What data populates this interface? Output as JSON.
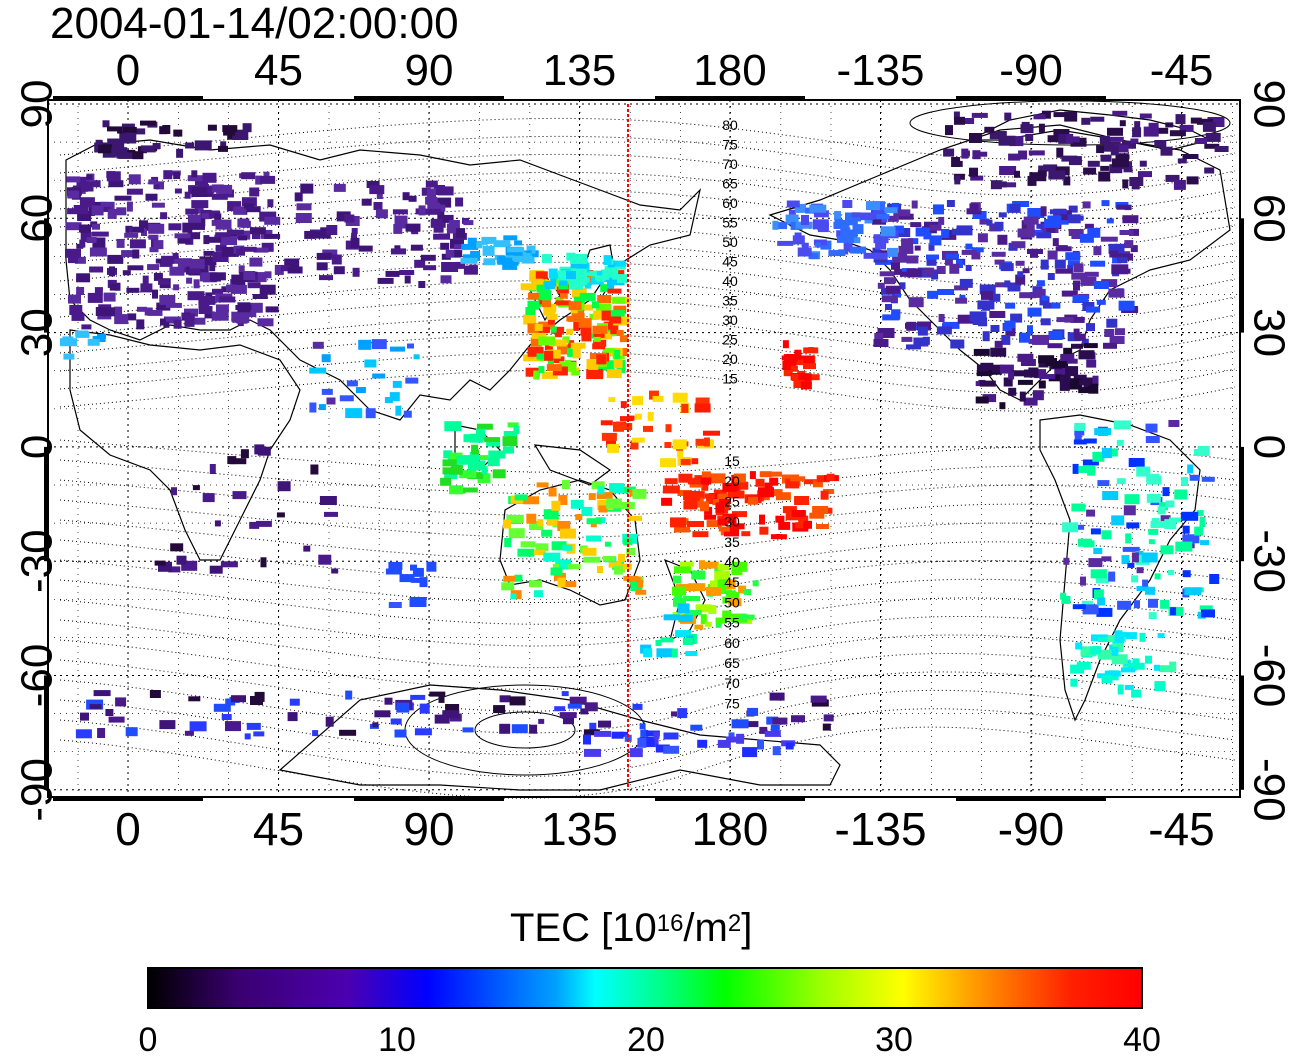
{
  "title": "2004-01-14/02:00:00",
  "map": {
    "lon_ticks": [
      "0",
      "45",
      "90",
      "135",
      "180",
      "-135",
      "-90",
      "-45"
    ],
    "lat_ticks": [
      "90",
      "60",
      "30",
      "0",
      "-30",
      "-60",
      "-90"
    ],
    "contour_labels_north": [
      "80",
      "75",
      "70",
      "65",
      "60",
      "55",
      "50",
      "45",
      "40",
      "35",
      "30",
      "25",
      "20",
      "15"
    ],
    "contour_labels_south": [
      "15",
      "20",
      "25",
      "30",
      "35",
      "40",
      "45",
      "50",
      "55",
      "60",
      "65",
      "70",
      "75"
    ],
    "marker_line_longitude": 150,
    "marker_line_color": "#ff0000"
  },
  "colorbar": {
    "title_prefix": "TEC  [10",
    "title_exp1": "16",
    "title_mid": "/m",
    "title_exp2": "2",
    "title_suffix": "]",
    "ticks": [
      "0",
      "10",
      "20",
      "30",
      "40"
    ],
    "colormap": [
      "#000000",
      "#4c00b0",
      "#0000ff",
      "#00ffff",
      "#00ff00",
      "#ffff00",
      "#ff9000",
      "#ff0000"
    ]
  }
}
